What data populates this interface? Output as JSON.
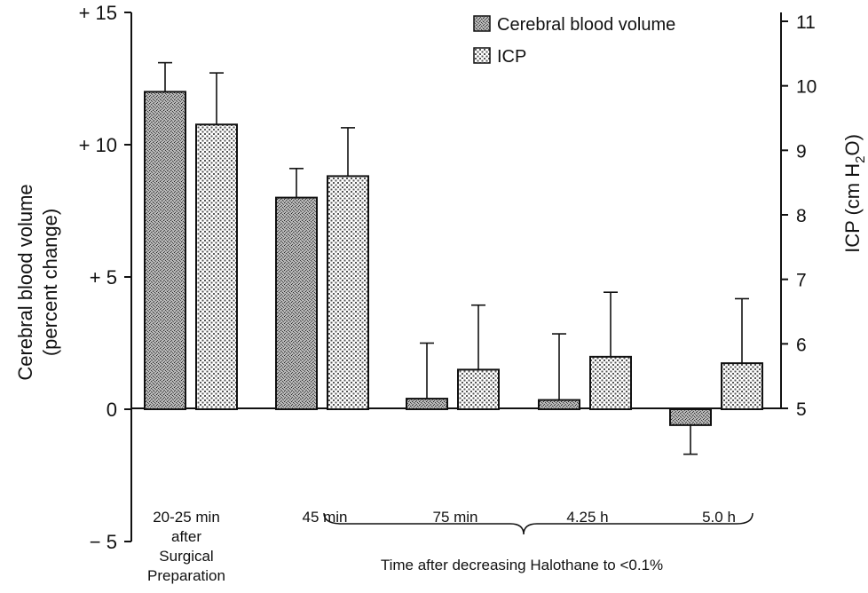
{
  "chart_data": {
    "type": "bar",
    "categories": [
      [
        "20-25 min",
        "after",
        "Surgical",
        "Preparation"
      ],
      [
        "45 min"
      ],
      [
        "75 min"
      ],
      [
        "4.25 h"
      ],
      [
        "5.0 h"
      ]
    ],
    "series": [
      {
        "name": "Cerebral blood volume",
        "axis": "left",
        "values": [
          12,
          8,
          0.4,
          0.35,
          -0.6
        ],
        "error": [
          1.1,
          1.1,
          2.1,
          2.5,
          1.1
        ],
        "error_direction": [
          "up",
          "up",
          "up",
          "up",
          "down"
        ],
        "fill": "#8a8a8a"
      },
      {
        "name": "ICP",
        "axis": "right",
        "values": [
          9.4,
          8.6,
          5.6,
          5.8,
          5.7
        ],
        "error": [
          0.8,
          0.75,
          1.0,
          1.0,
          1.0
        ],
        "error_direction": [
          "up",
          "up",
          "up",
          "up",
          "up"
        ],
        "fill": "#cfcfcf"
      }
    ],
    "y_left": {
      "label": [
        "Cerebral blood volume",
        "(percent change)"
      ],
      "ylim": [
        -5,
        15
      ],
      "ticks": [
        -5,
        0,
        5,
        10,
        15
      ],
      "tick_labels": [
        "− 5",
        "0",
        "+ 5",
        "+ 10",
        "+ 15"
      ]
    },
    "y_right": {
      "label": "ICP (cm H2O)",
      "label_main": "ICP (cm H",
      "label_sub": "2",
      "label_tail": "O)",
      "ylim": [
        5,
        11
      ],
      "ticks": [
        5,
        6,
        7,
        8,
        9,
        10,
        11
      ],
      "tick_labels": [
        "5",
        "6",
        "7",
        "8",
        "9",
        "10",
        "11"
      ]
    },
    "annotation": "Time after decreasing Halothane to <0.1%",
    "legend_position": "top-right",
    "grid": false
  }
}
